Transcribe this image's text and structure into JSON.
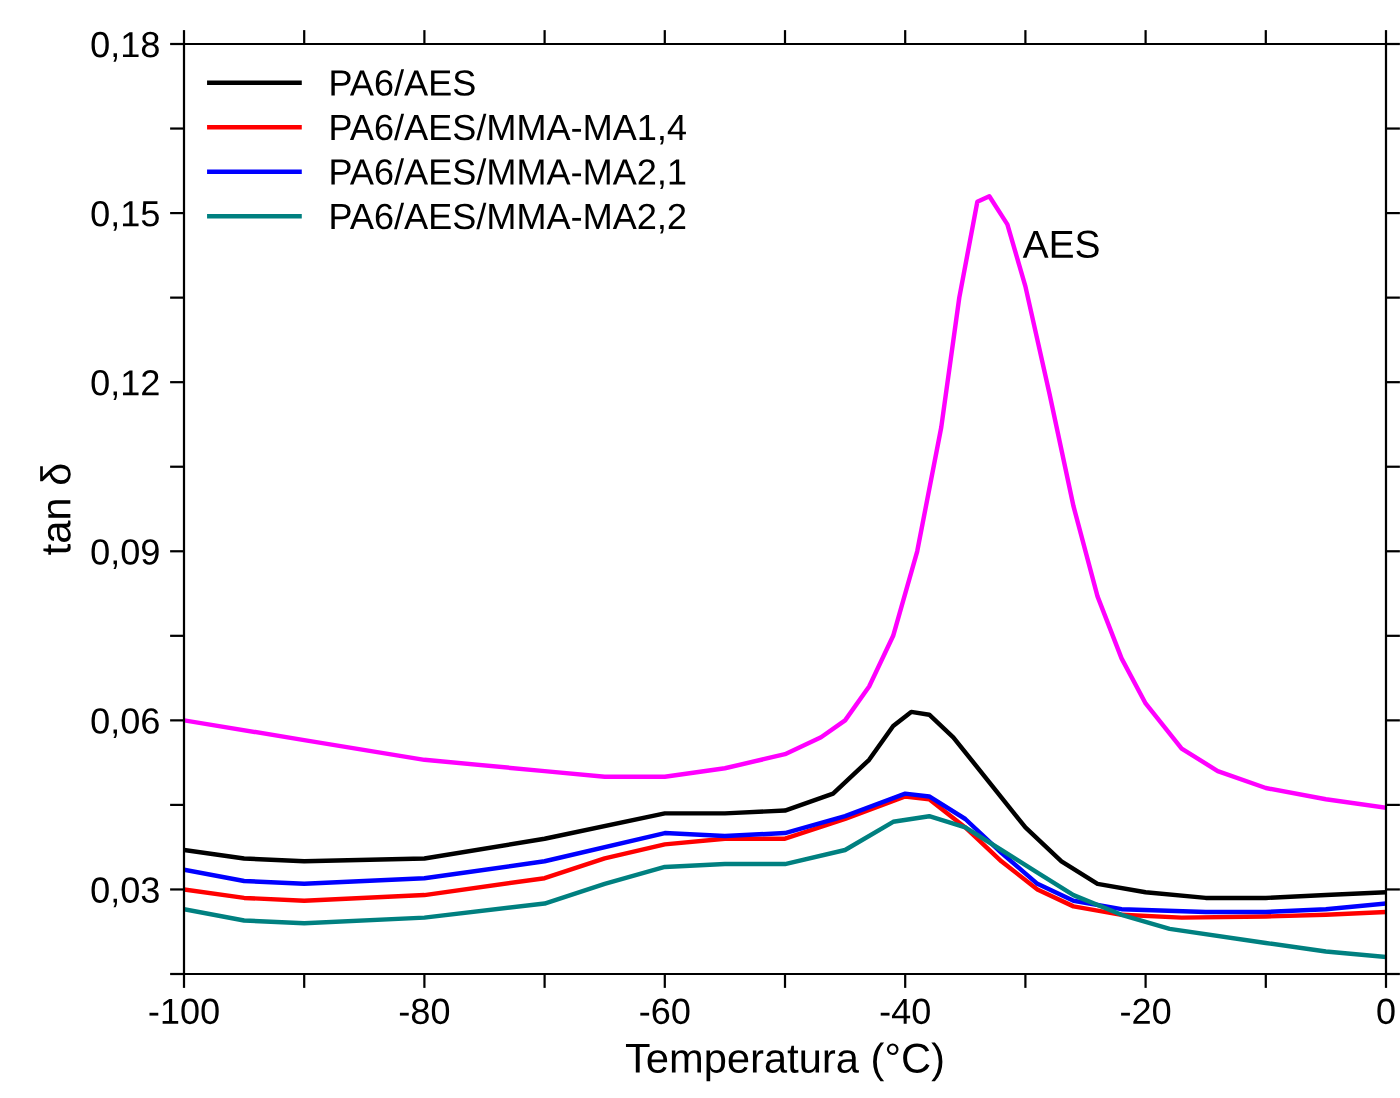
{
  "chart_data": {
    "type": "line",
    "xlabel": "Temperatura (°C)",
    "ylabel": "tan δ",
    "xlim": [
      -100,
      0
    ],
    "ylim": [
      0.015,
      0.18
    ],
    "xticks": [
      {
        "value": -100,
        "label": "-100"
      },
      {
        "value": -90,
        "label": null
      },
      {
        "value": -80,
        "label": "-80"
      },
      {
        "value": -70,
        "label": null
      },
      {
        "value": -60,
        "label": "-60"
      },
      {
        "value": -50,
        "label": null
      },
      {
        "value": -40,
        "label": "-40"
      },
      {
        "value": -30,
        "label": null
      },
      {
        "value": -20,
        "label": "-20"
      },
      {
        "value": -10,
        "label": null
      },
      {
        "value": 0,
        "label": "0"
      }
    ],
    "yticks": [
      {
        "value": 0.015,
        "label": null
      },
      {
        "value": 0.03,
        "label": "0,03"
      },
      {
        "value": 0.045,
        "label": null
      },
      {
        "value": 0.06,
        "label": "0,06"
      },
      {
        "value": 0.075,
        "label": null
      },
      {
        "value": 0.09,
        "label": "0,09"
      },
      {
        "value": 0.105,
        "label": null
      },
      {
        "value": 0.12,
        "label": "0,12"
      },
      {
        "value": 0.135,
        "label": null
      },
      {
        "value": 0.15,
        "label": "0,15"
      },
      {
        "value": 0.165,
        "label": null
      },
      {
        "value": 0.18,
        "label": "0,18"
      }
    ],
    "grid": false,
    "legend": "top left",
    "marker": "none",
    "line_style": "solid",
    "annotations": [
      {
        "text": "AES",
        "x": -33,
        "y": 0.153
      }
    ],
    "series": [
      {
        "name": "PA6/AES",
        "color": "#000000",
        "x": [
          -100,
          -95,
          -90,
          -80,
          -70,
          -60,
          -55,
          -50,
          -46,
          -43,
          -41,
          -39.5,
          -38,
          -36,
          -33,
          -30,
          -27,
          -24,
          -20,
          -15,
          -10,
          -5,
          0
        ],
        "values": [
          0.037,
          0.0355,
          0.035,
          0.0355,
          0.039,
          0.0435,
          0.0435,
          0.044,
          0.047,
          0.053,
          0.059,
          0.0615,
          0.061,
          0.057,
          0.049,
          0.041,
          0.035,
          0.031,
          0.0295,
          0.0285,
          0.0285,
          0.029,
          0.0295
        ]
      },
      {
        "name": "PA6/AES/MMA-MA1,4",
        "color": "#ff0000",
        "x": [
          -100,
          -95,
          -90,
          -80,
          -70,
          -65,
          -60,
          -55,
          -50,
          -45,
          -40,
          -38,
          -35,
          -32,
          -29,
          -26,
          -22,
          -17,
          -10,
          -5,
          0
        ],
        "values": [
          0.03,
          0.0285,
          0.028,
          0.029,
          0.032,
          0.0355,
          0.038,
          0.039,
          0.039,
          0.0425,
          0.0465,
          0.046,
          0.041,
          0.035,
          0.03,
          0.027,
          0.0255,
          0.025,
          0.0252,
          0.0255,
          0.026
        ]
      },
      {
        "name": "PA6/AES/MMA-MA2,1",
        "color": "#0000ff",
        "x": [
          -100,
          -95,
          -90,
          -80,
          -70,
          -60,
          -55,
          -50,
          -45,
          -40,
          -38,
          -35,
          -32,
          -29,
          -26,
          -22,
          -15,
          -10,
          -5,
          0
        ],
        "values": [
          0.0335,
          0.0315,
          0.031,
          0.032,
          0.035,
          0.04,
          0.0395,
          0.04,
          0.043,
          0.047,
          0.0465,
          0.0425,
          0.0365,
          0.031,
          0.028,
          0.0265,
          0.026,
          0.026,
          0.0265,
          0.0275
        ]
      },
      {
        "name": "PA6/AES/MMA-MA2,2",
        "color": "#008080",
        "x": [
          -100,
          -95,
          -90,
          -80,
          -70,
          -65,
          -60,
          -55,
          -50,
          -45,
          -41,
          -38,
          -35,
          -32,
          -29,
          -26,
          -22,
          -18,
          -10,
          -5,
          0
        ],
        "values": [
          0.0265,
          0.0245,
          0.024,
          0.025,
          0.0275,
          0.031,
          0.034,
          0.0345,
          0.0345,
          0.037,
          0.042,
          0.043,
          0.041,
          0.037,
          0.033,
          0.029,
          0.0255,
          0.023,
          0.0205,
          0.019,
          0.018
        ]
      },
      {
        "color": "#ff00ff",
        "x": [
          -100,
          -90,
          -80,
          -70,
          -65,
          -60,
          -55,
          -50,
          -47,
          -45,
          -43,
          -41,
          -39,
          -37,
          -35.5,
          -34,
          -33,
          -31.5,
          -30,
          -28,
          -26,
          -24,
          -22,
          -20,
          -17,
          -14,
          -10,
          -5,
          0
        ],
        "values": [
          0.06,
          0.0565,
          0.053,
          0.051,
          0.05,
          0.05,
          0.0515,
          0.054,
          0.057,
          0.06,
          0.066,
          0.075,
          0.09,
          0.112,
          0.135,
          0.152,
          0.153,
          0.148,
          0.137,
          0.118,
          0.098,
          0.082,
          0.071,
          0.063,
          0.055,
          0.051,
          0.048,
          0.046,
          0.0445
        ]
      }
    ]
  }
}
